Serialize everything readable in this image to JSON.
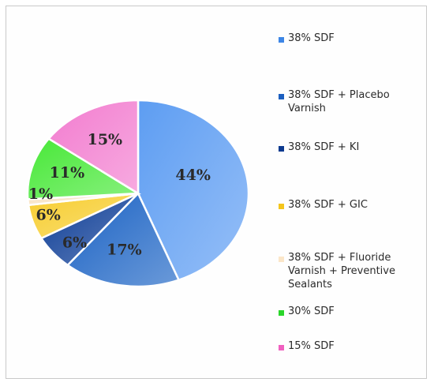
{
  "chart_data": {
    "type": "pie",
    "slices": [
      {
        "label": "38% SDF",
        "value": 44,
        "display": "44%",
        "color": "#5d9df2"
      },
      {
        "label": "38% SDF + Placebo Varnish",
        "value": 17,
        "display": "17%",
        "color": "#1c63c4"
      },
      {
        "label": "38% SDF + KI",
        "value": 6,
        "display": "6%",
        "color": "#0d3d96"
      },
      {
        "label": "38% SDF + GIC",
        "value": 6,
        "display": "6%",
        "color": "#f7cd2f"
      },
      {
        "label": "38% SDF + Fluoride Varnish + Preventive Sealants",
        "value": 1,
        "display": "1%",
        "color": "#f8e3c3"
      },
      {
        "label": "30% SDF",
        "value": 11,
        "display": "11%",
        "color": "#48e838"
      },
      {
        "label": "15% SDF",
        "value": 15,
        "display": "15%",
        "color": "#f27ccf"
      }
    ],
    "legend_position": "right"
  },
  "legend": {
    "items": [
      {
        "label": "38% SDF",
        "color": "#3d86e6"
      },
      {
        "label": "38% SDF + Placebo Varnish",
        "color": "#1c5fc0"
      },
      {
        "label": "38% SDF + KI",
        "color": "#0d3a8f"
      },
      {
        "label": "38% SDF + GIC",
        "color": "#f4c51c"
      },
      {
        "label": "38% SDF + Fluoride Varnish + Preventive Sealants",
        "color": "#fbe6c8"
      },
      {
        "label": "30% SDF",
        "color": "#2ad62a"
      },
      {
        "label": "15% SDF",
        "color": "#f060c0"
      }
    ]
  }
}
